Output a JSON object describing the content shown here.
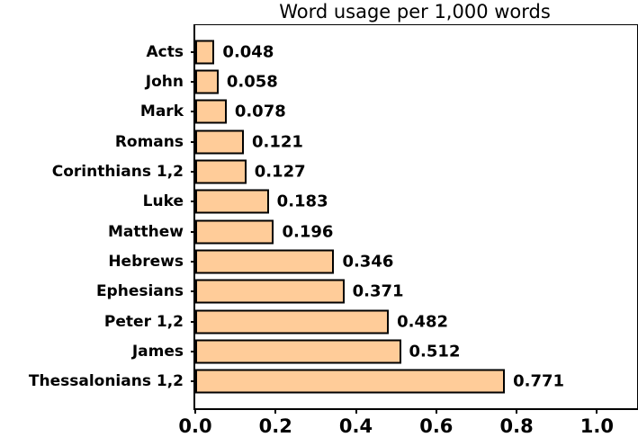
{
  "chart_data": {
    "type": "bar",
    "orientation": "horizontal",
    "title": "Word usage per 1,000 words",
    "categories": [
      "Acts",
      "John",
      "Mark",
      "Romans",
      "Corinthians 1,2",
      "Luke",
      "Matthew",
      "Hebrews",
      "Ephesians",
      "Peter 1,2",
      "James",
      "Thessalonians 1,2"
    ],
    "values": [
      0.048,
      0.058,
      0.078,
      0.121,
      0.127,
      0.183,
      0.196,
      0.346,
      0.371,
      0.482,
      0.512,
      0.771
    ],
    "value_labels": [
      "0.048",
      "0.058",
      "0.078",
      "0.121",
      "0.127",
      "0.183",
      "0.196",
      "0.346",
      "0.371",
      "0.482",
      "0.512",
      "0.771"
    ],
    "xlabel": "",
    "ylabel": "",
    "x_ticks": [
      "0.0",
      "0.2",
      "0.4",
      "0.6",
      "0.8",
      "1.0"
    ],
    "x_tick_values": [
      0.0,
      0.2,
      0.4,
      0.6,
      0.8,
      1.0
    ],
    "xlim": [
      0,
      1.1
    ],
    "grid": false,
    "legend": "none",
    "bar_color": "#FFCC99",
    "bar_border_color": "#000000",
    "axis_color": "#000000",
    "text_color": "#000000",
    "background_color": "#FFFFFF"
  }
}
